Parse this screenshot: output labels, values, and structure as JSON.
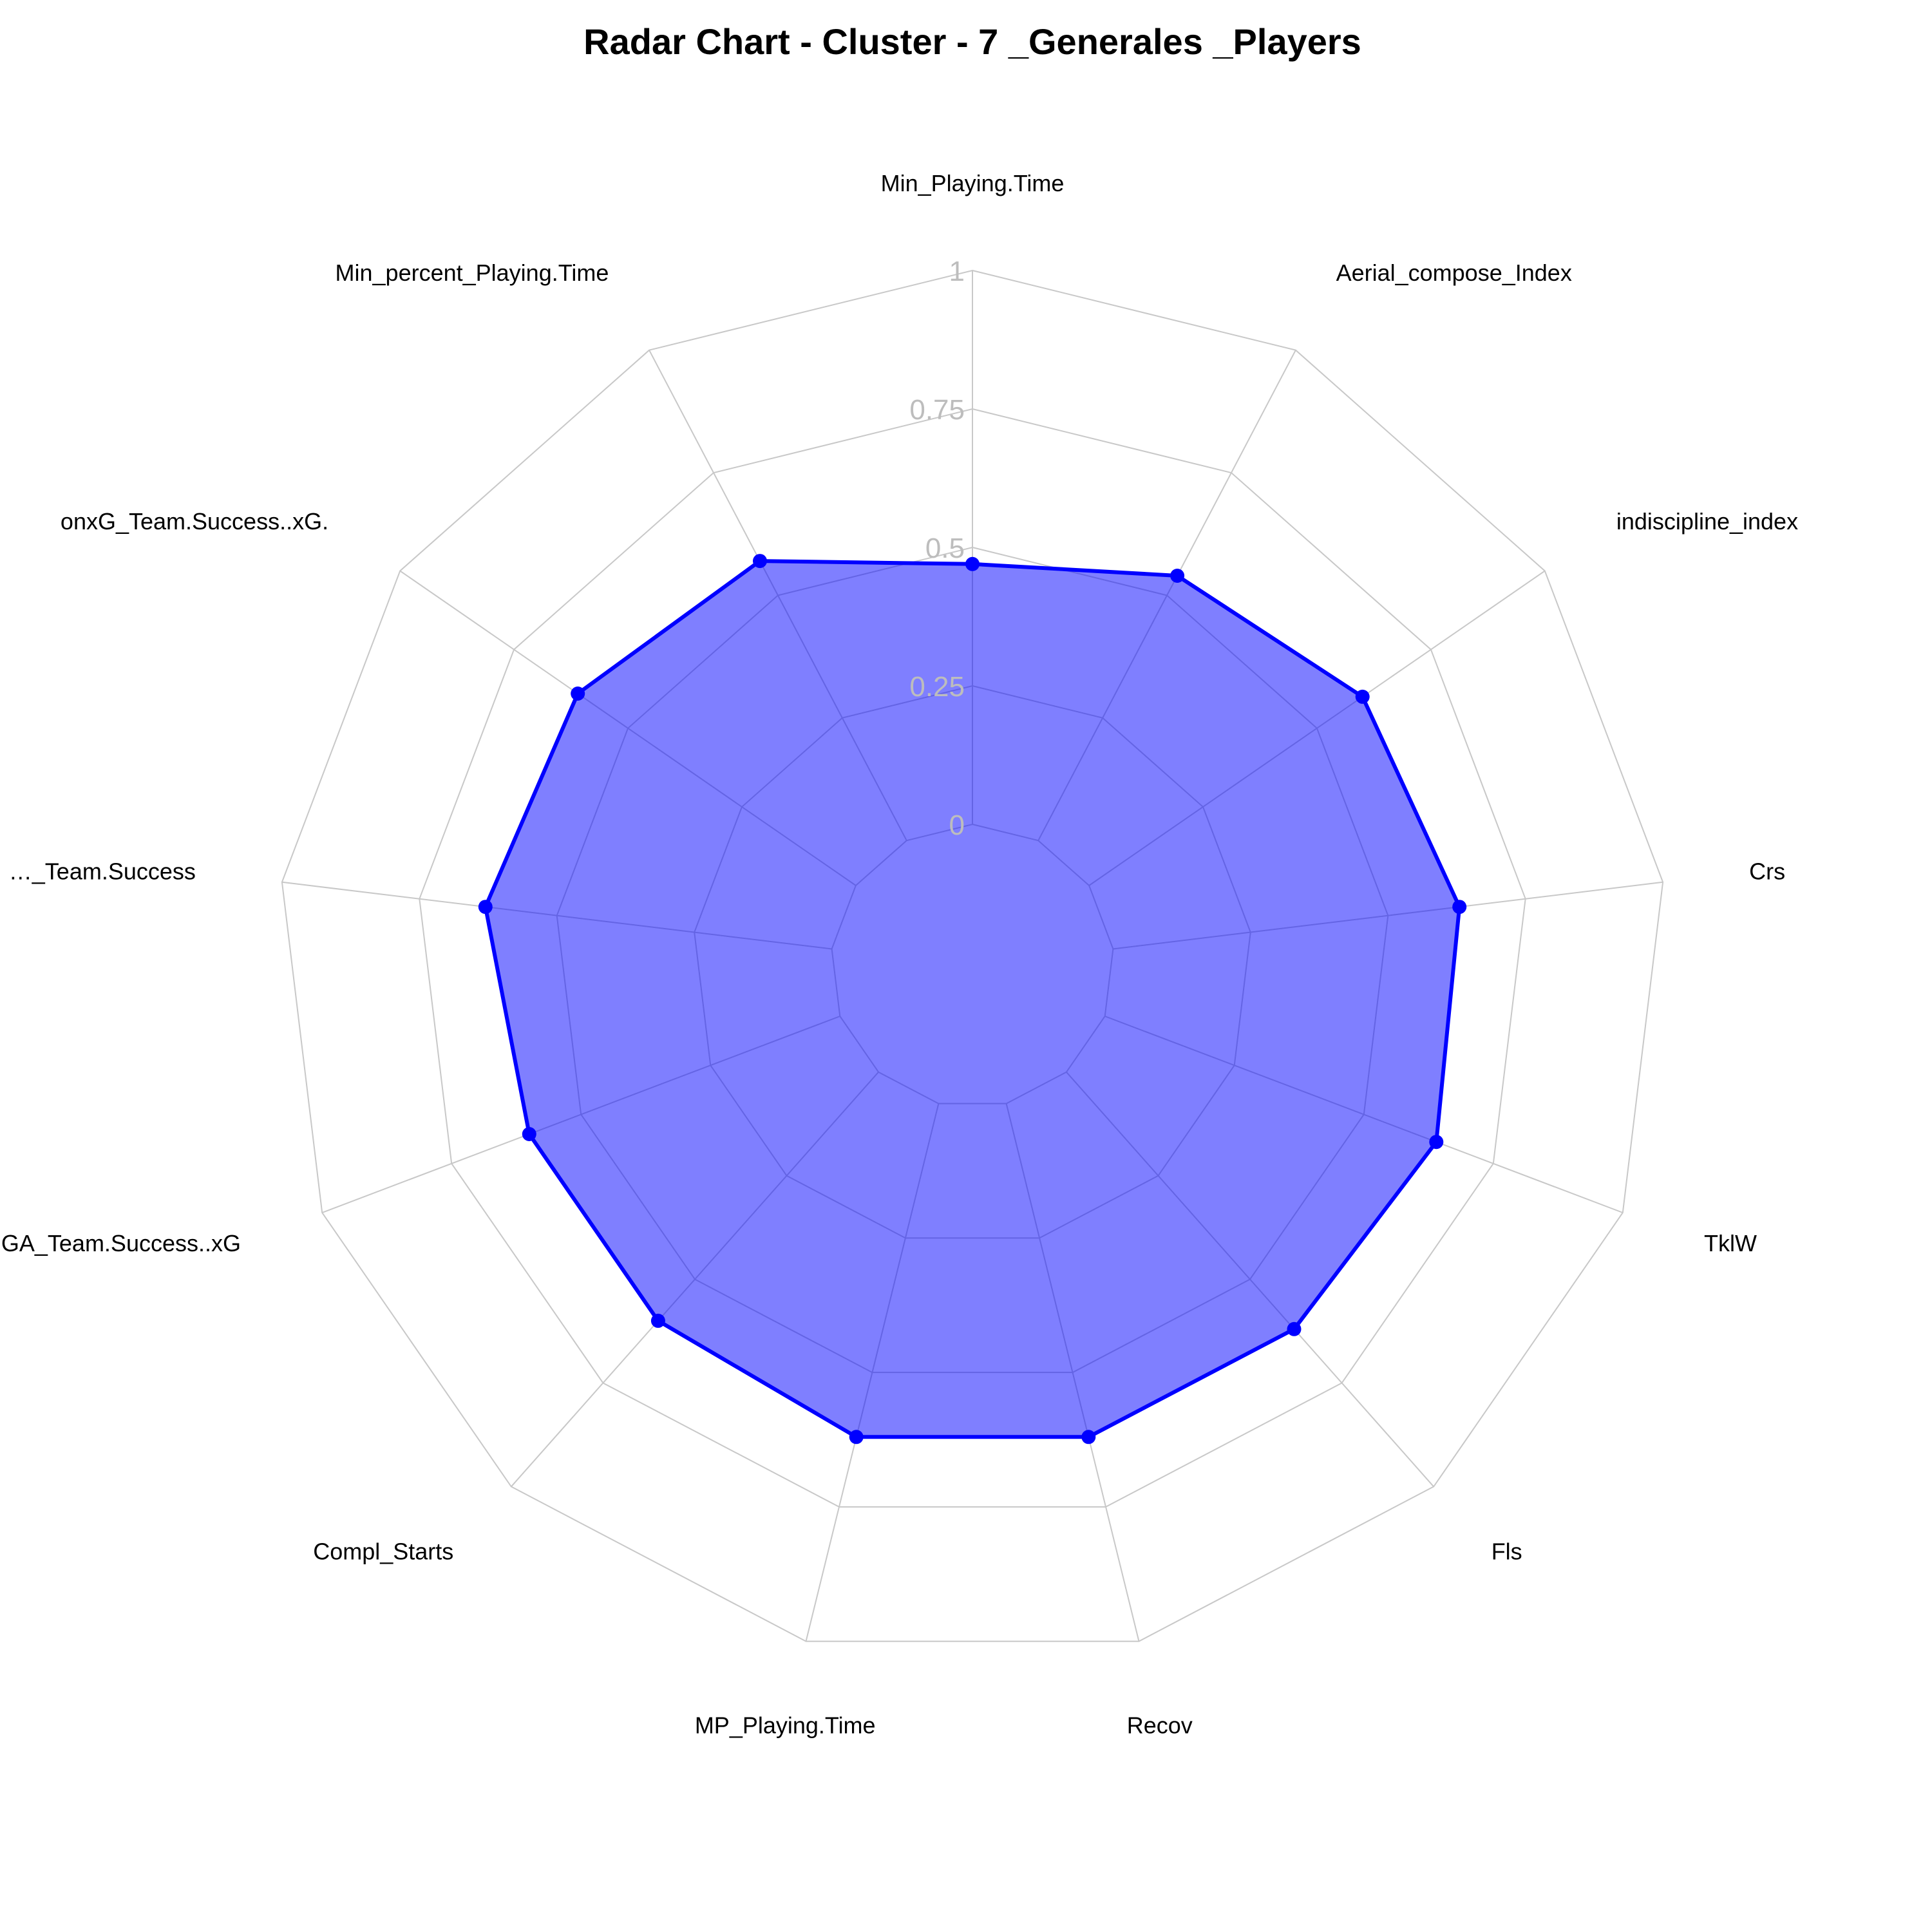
{
  "chart_data": {
    "type": "radar",
    "title": "Radar Chart - Cluster - 7 _Generales _Players",
    "axes": [
      "Min_Playing.Time",
      "Aerial_compose_Index",
      "indiscipline_index",
      "Crs",
      "TklW",
      "Fls",
      "Recov",
      "MP_Playing.Time",
      "Compl_Starts",
      "xGA_Team.Success..xG",
      "G_Team.Success",
      "onxG_Team.Success..xG.",
      "Min_percent_Playing.Time"
    ],
    "axis_label_texts": [
      "Min_Playing.Time",
      "Aerial_compose_Index",
      "indiscipline_index",
      "Crs",
      "TklW",
      "Fls",
      "Recov",
      "MP_Playing.Time",
      "Compl_Starts",
      "…GA_Team.Success..xG",
      "…_Team.Success",
      "onxG_Team.Success..xG.",
      "Min_percent_Playing.Time"
    ],
    "series": [
      {
        "values": [
          0.47,
          0.54,
          0.6,
          0.63,
          0.64,
          0.62,
          0.62,
          0.62,
          0.6,
          0.6,
          0.63,
          0.61,
          0.57
        ]
      }
    ],
    "tick_labels": [
      "0",
      "0.25",
      "0.5",
      "0.75",
      "1"
    ],
    "range": [
      0,
      1
    ],
    "grid": true,
    "legend": "none",
    "colors": {
      "line": "#0000ff",
      "point": "#0000ff",
      "fill": "#0000ff",
      "fill_opacity": 0.5,
      "grid": "#c8c8c8",
      "tick_text": "#bdbdbd"
    }
  }
}
